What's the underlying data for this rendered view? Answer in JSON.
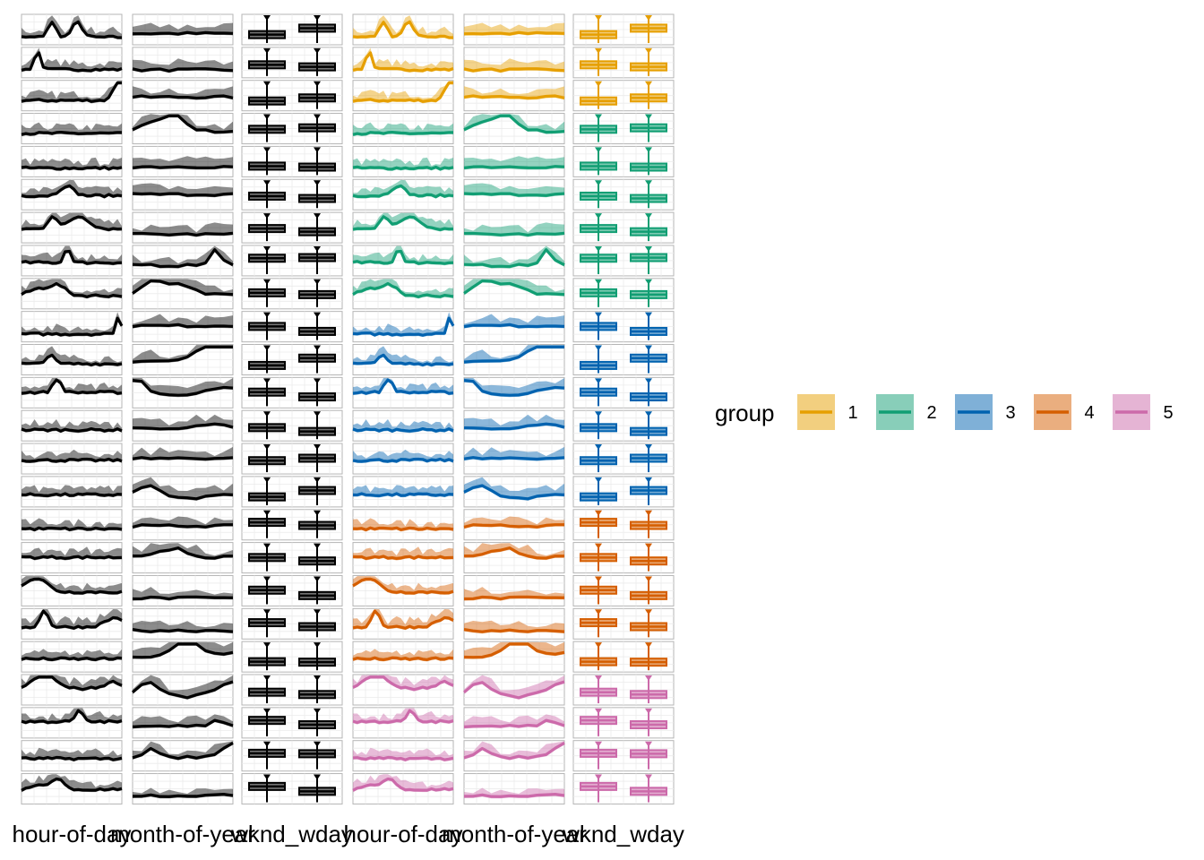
{
  "chart_data": {
    "type": "line",
    "title": "",
    "facet_rows": 24,
    "facet_columns": [
      "hour-of-day",
      "month-of-year",
      "wknd_wday",
      "hour-of-day",
      "month-of-year",
      "wknd_wday"
    ],
    "column_kinds": [
      "hour",
      "month",
      "box",
      "hour",
      "month",
      "box"
    ],
    "column_colored": [
      false,
      false,
      false,
      true,
      true,
      true
    ],
    "x_axis_labels": [
      "hour-of-day",
      "month-of-year",
      "wknd_wday",
      "hour-of-day",
      "month-of-year",
      "wknd_wday"
    ],
    "grid": "on",
    "ylim": [
      0,
      1
    ],
    "row_groups": [
      "1",
      "1",
      "1",
      "2",
      "2",
      "2",
      "2",
      "2",
      "2",
      "3",
      "3",
      "3",
      "3",
      "3",
      "3",
      "4",
      "4",
      "4",
      "4",
      "4",
      "5",
      "5",
      "5",
      "5"
    ],
    "colors": {
      "1": "#E69F00",
      "2": "#119E73",
      "3": "#0062AF",
      "4": "#D55E00",
      "5": "#CC6AAA",
      "mono": "#000000"
    },
    "legend": {
      "title": "group",
      "position": "right",
      "entries": [
        "1",
        "2",
        "3",
        "4",
        "5"
      ]
    }
  }
}
